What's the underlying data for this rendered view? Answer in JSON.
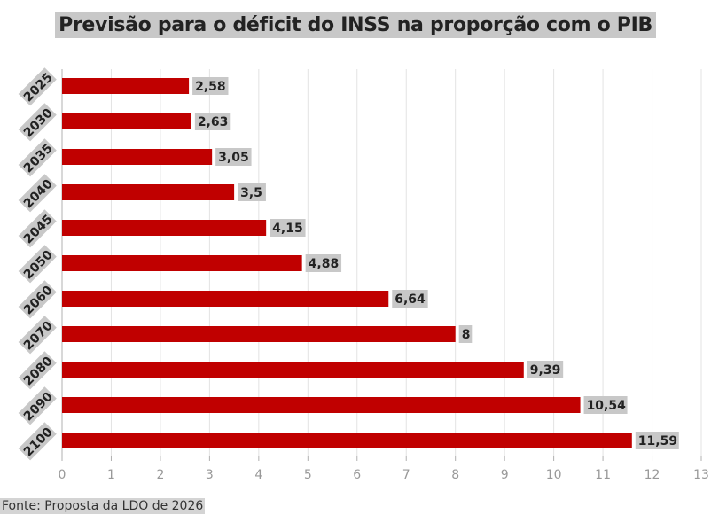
{
  "chart_data": {
    "type": "bar",
    "orientation": "horizontal",
    "title": "Previsão para o déficit do INSS na proporção com o PIB",
    "categories": [
      "2025",
      "2030",
      "2035",
      "2040",
      "2045",
      "2050",
      "2060",
      "2070",
      "2080",
      "2090",
      "2100"
    ],
    "values": [
      2.58,
      2.63,
      3.05,
      3.5,
      4.15,
      4.88,
      6.64,
      8,
      9.39,
      10.54,
      11.59
    ],
    "value_labels": [
      "2,58",
      "2,63",
      "3,05",
      "3,5",
      "4,15",
      "4,88",
      "6,64",
      "8",
      "9,39",
      "10,54",
      "11,59"
    ],
    "xlim": [
      0,
      13
    ],
    "x_ticks": [
      "0",
      "1",
      "2",
      "3",
      "4",
      "5",
      "6",
      "7",
      "8",
      "9",
      "10",
      "11",
      "12",
      "13"
    ],
    "grid": true,
    "bar_color": "#c00000",
    "label_bg_color": "#c8c8c8"
  },
  "source": "Fonte: Proposta da LDO de 2026"
}
